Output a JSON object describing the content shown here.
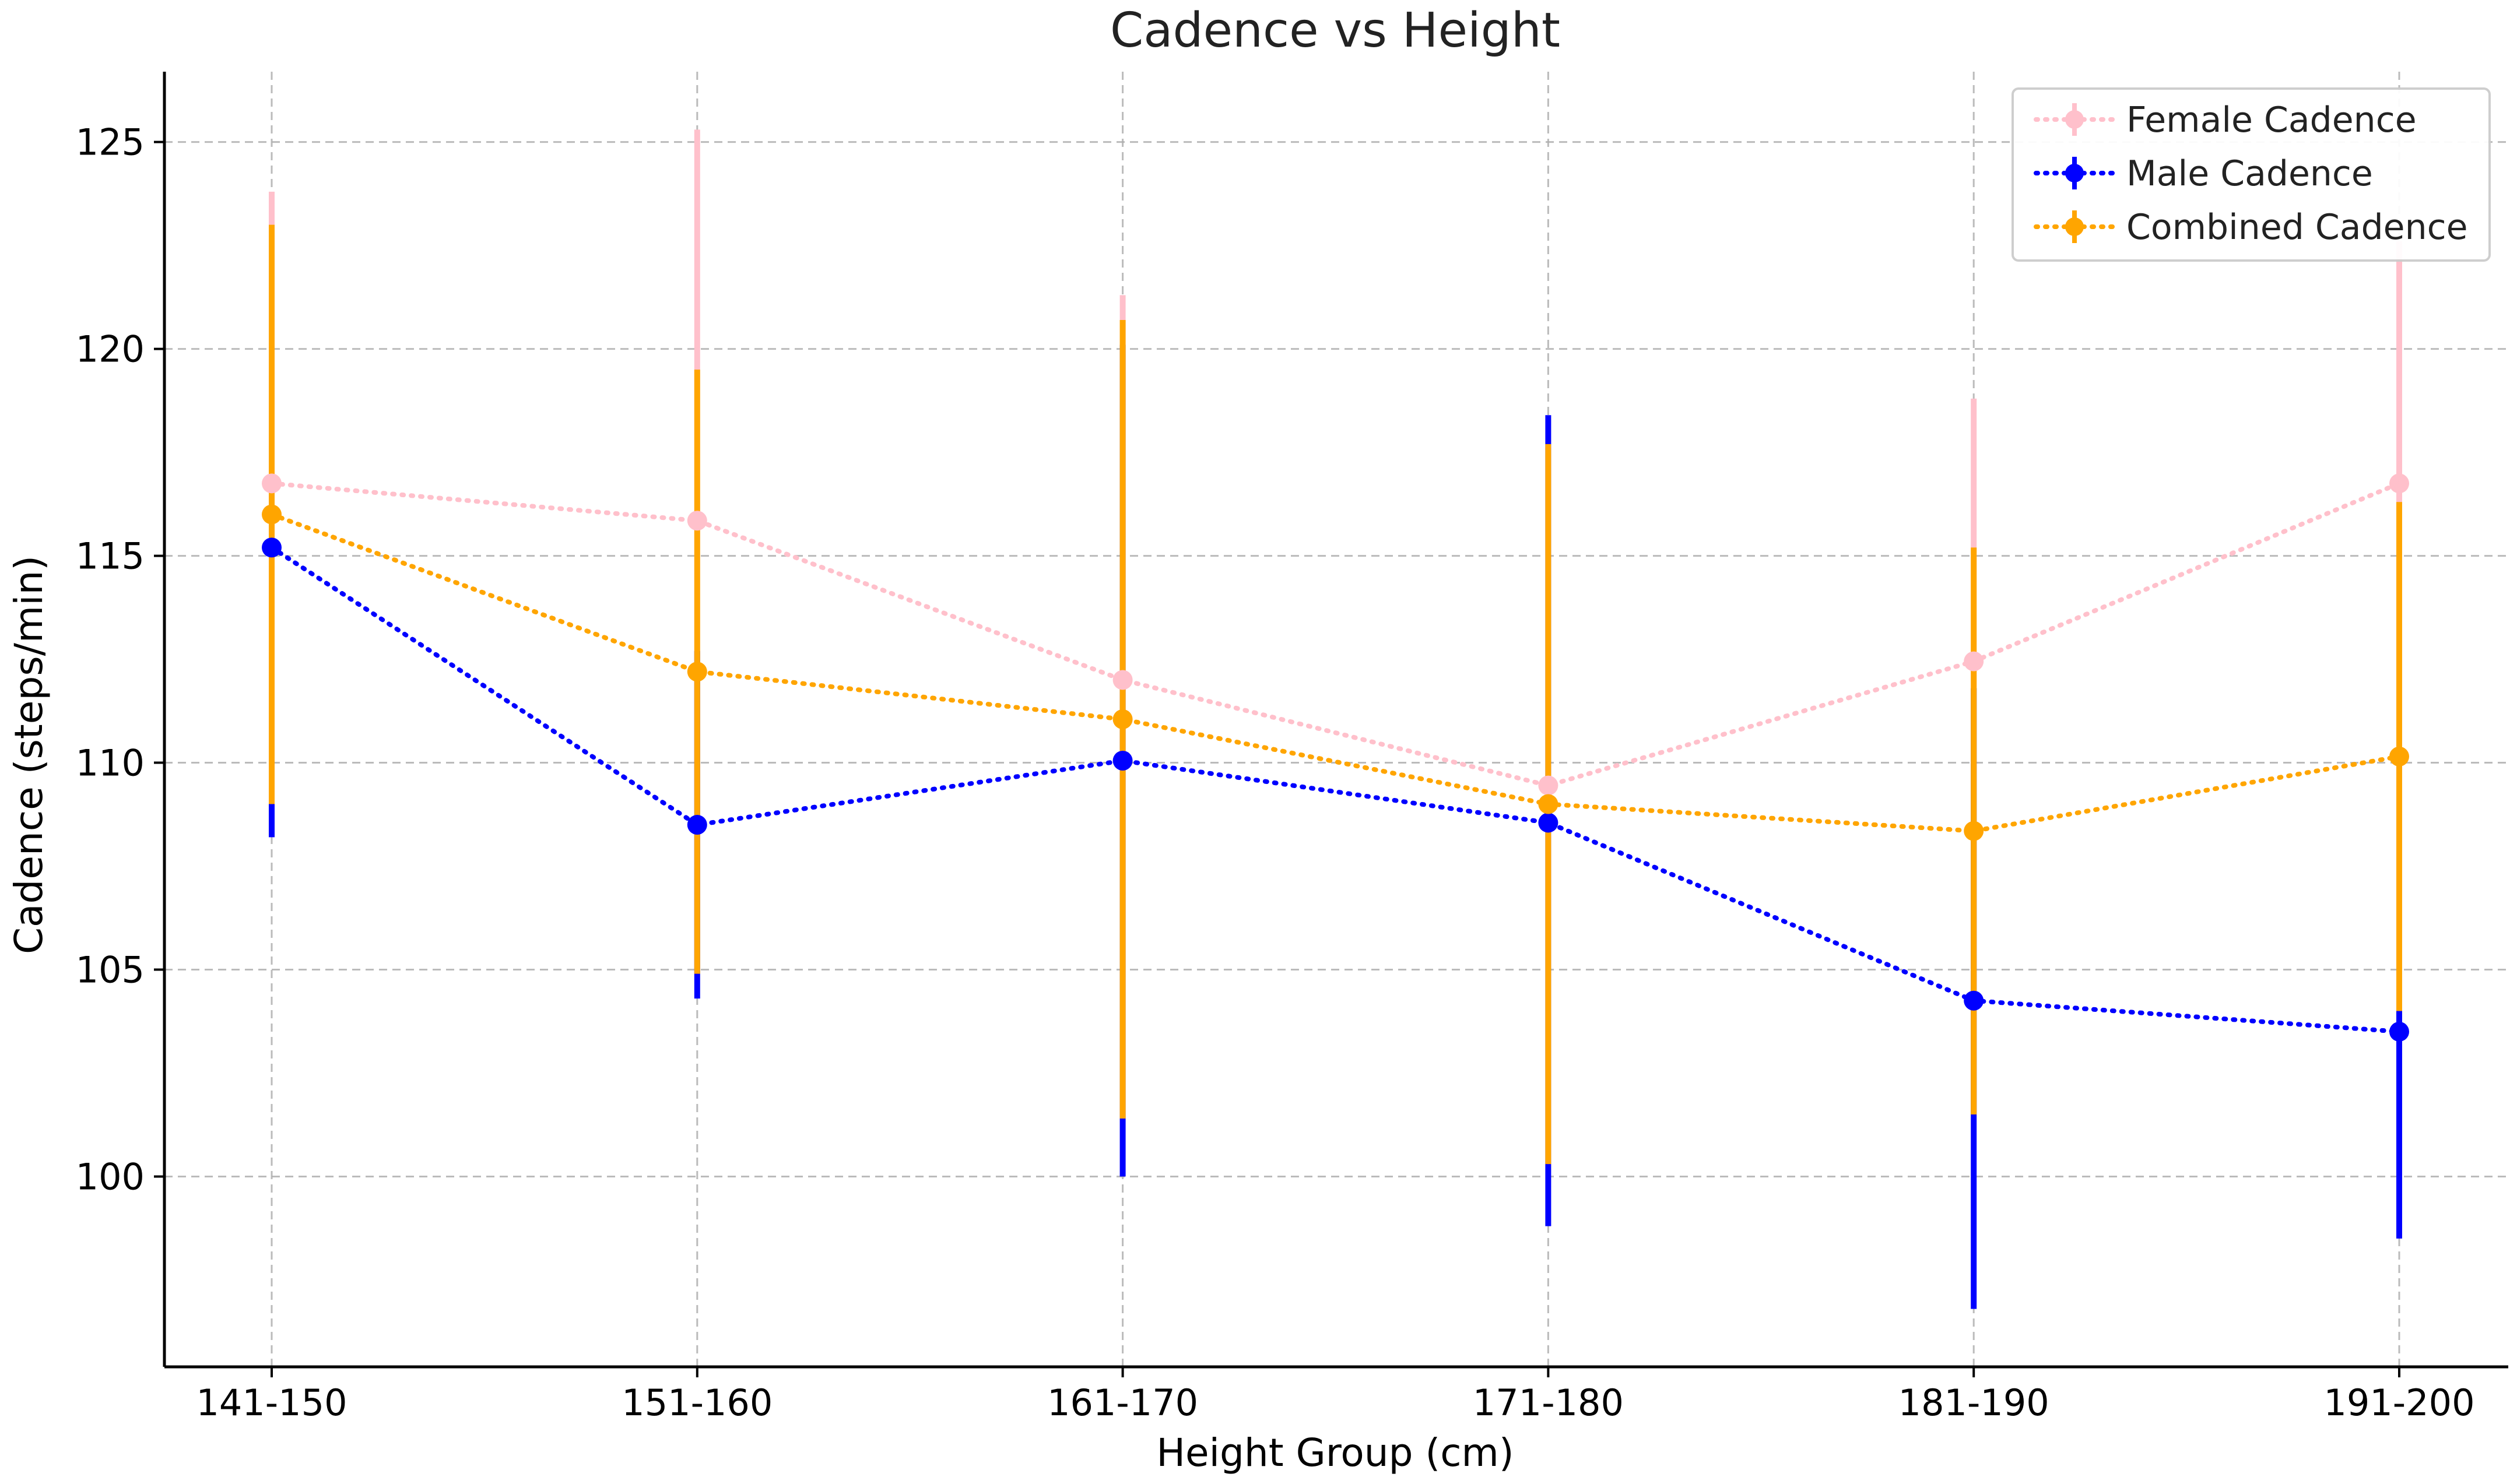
{
  "chart_data": {
    "type": "line",
    "title": "Cadence vs Height",
    "xlabel": "Height Group (cm)",
    "ylabel": "Cadence (steps/min)",
    "categories": [
      "141-150",
      "151-160",
      "161-170",
      "171-180",
      "181-190",
      "191-200"
    ],
    "yticks": [
      100,
      105,
      110,
      115,
      120,
      125
    ],
    "ylim": [
      95.4,
      126.7
    ],
    "grid": true,
    "legend_position": "top-right",
    "series": [
      {
        "name": "Female Cadence",
        "color": "#ffc0cb",
        "values": [
          116.75,
          115.85,
          112.0,
          109.45,
          112.45,
          116.75
        ],
        "err_low": [
          109.0,
          104.9,
          101.4,
          100.3,
          101.5,
          104.0
        ],
        "err_high": [
          123.8,
          125.3,
          121.3,
          117.6,
          118.8,
          122.6
        ]
      },
      {
        "name": "Male Cadence",
        "color": "#0000ff",
        "values": [
          115.2,
          108.5,
          110.05,
          108.55,
          104.25,
          103.5
        ],
        "err_low": [
          108.2,
          104.3,
          100.0,
          98.8,
          96.8,
          98.5
        ],
        "err_high": [
          122.5,
          112.7,
          120.1,
          118.4,
          111.8,
          108.5
        ]
      },
      {
        "name": "Combined Cadence",
        "color": "#ffa500",
        "values": [
          116.0,
          112.2,
          111.05,
          109.0,
          108.35,
          110.15
        ],
        "err_low": [
          109.0,
          104.9,
          101.4,
          100.3,
          101.5,
          104.0
        ],
        "err_high": [
          123.0,
          119.5,
          120.7,
          117.7,
          115.2,
          116.3
        ]
      }
    ]
  }
}
